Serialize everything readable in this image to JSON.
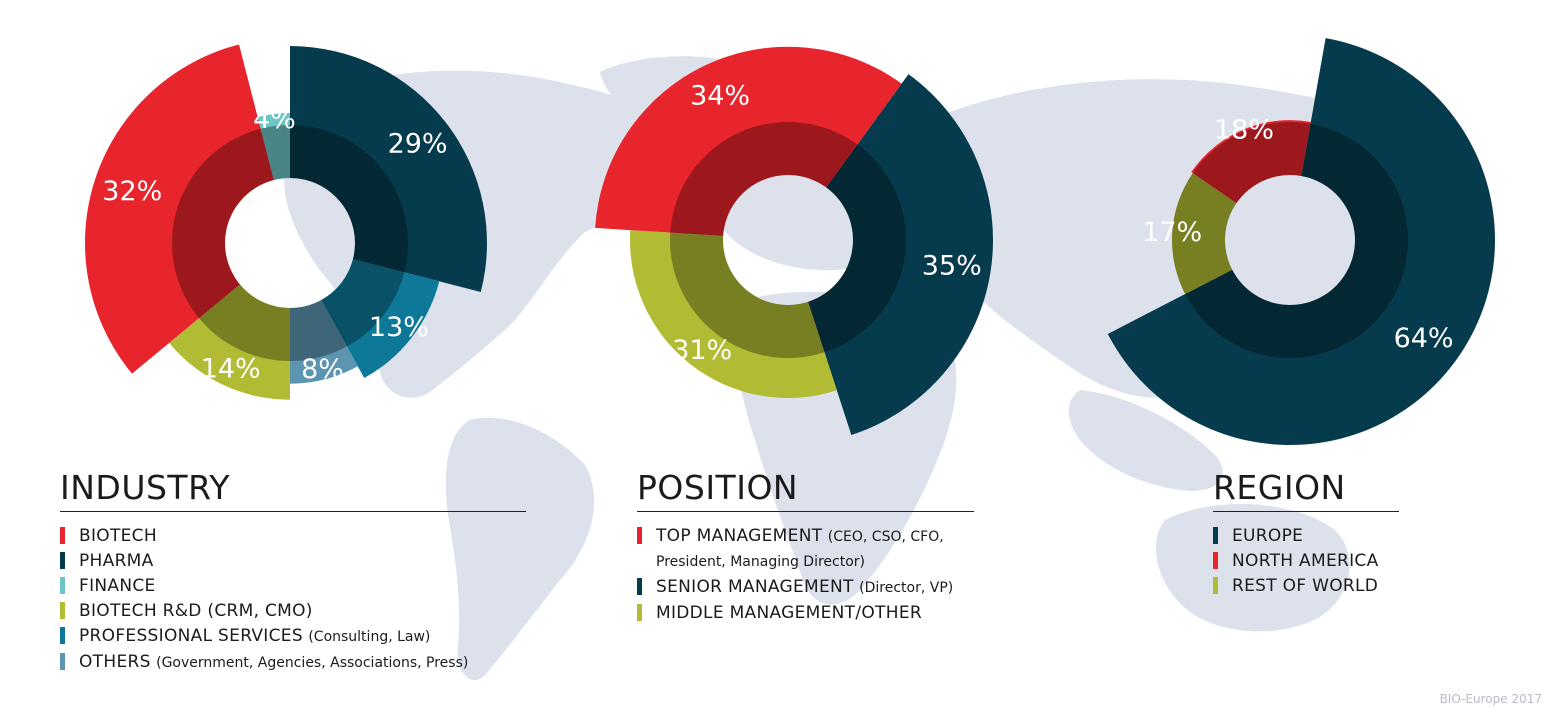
{
  "colors": {
    "red": "#e8242c",
    "navy": "#063a4d",
    "teal": "#6cc5c5",
    "olive": "#b2bb34",
    "blue": "#0e7899",
    "steel": "#5d95b1",
    "map": "#dde1ec"
  },
  "chart_data": [
    {
      "type": "pie",
      "title": "INDUSTRY",
      "categories": [
        "PHARMA",
        "PROFESSIONAL SERVICES",
        "OTHERS",
        "BIOTECH R&D",
        "BIOTECH",
        "FINANCE"
      ],
      "values": [
        29,
        13,
        8,
        14,
        32,
        4
      ],
      "labels": [
        "29%",
        "13%",
        "8%",
        "14%",
        "32%",
        "4%"
      ],
      "colors": [
        "#063a4d",
        "#0e7899",
        "#5d95b1",
        "#b2bb34",
        "#e8242c",
        "#6cc5c5"
      ],
      "legend": [
        {
          "main": "BIOTECH",
          "detail": "",
          "color": "#e8242c"
        },
        {
          "main": "PHARMA",
          "detail": "",
          "color": "#063a4d"
        },
        {
          "main": "FINANCE",
          "detail": "",
          "color": "#6cc5c5"
        },
        {
          "main": "BIOTECH R&D (CRM, CMO)",
          "detail": "",
          "color": "#b2bb34"
        },
        {
          "main": "PROFESSIONAL SERVICES",
          "detail": "(Consulting, Law)",
          "color": "#0e7899"
        },
        {
          "main": "OTHERS",
          "detail": "(Government, Agencies, Associations, Press)",
          "color": "#5d95b1"
        }
      ]
    },
    {
      "type": "pie",
      "title": "POSITION",
      "categories": [
        "SENIOR MANAGEMENT",
        "MIDDLE MANAGEMENT/OTHER",
        "TOP MANAGEMENT"
      ],
      "values": [
        35,
        31,
        34
      ],
      "labels": [
        "35%",
        "31%",
        "34%"
      ],
      "colors": [
        "#063a4d",
        "#b2bb34",
        "#e8242c"
      ],
      "legend": [
        {
          "main": "TOP MANAGEMENT",
          "detail": "(CEO, CSO, CFO, President, Managing Director)",
          "color": "#e8242c"
        },
        {
          "main": "SENIOR MANAGEMENT",
          "detail": "(Director, VP)",
          "color": "#063a4d"
        },
        {
          "main": "MIDDLE MANAGEMENT/OTHER",
          "detail": "",
          "color": "#b2bb34"
        }
      ]
    },
    {
      "type": "pie",
      "title": "REGION",
      "categories": [
        "EUROPE",
        "REST OF WORLD",
        "NORTH AMERICA"
      ],
      "values": [
        64,
        17,
        18
      ],
      "labels": [
        "64%",
        "17%",
        "18%"
      ],
      "colors": [
        "#063a4d",
        "#b2bb34",
        "#e8242c"
      ],
      "legend": [
        {
          "main": "EUROPE",
          "detail": "",
          "color": "#063a4d"
        },
        {
          "main": "NORTH AMERICA",
          "detail": "",
          "color": "#e8242c"
        },
        {
          "main": "REST OF WORLD",
          "detail": "",
          "color": "#b2bb34"
        }
      ]
    }
  ],
  "credit": "BIO-Europe 2017"
}
